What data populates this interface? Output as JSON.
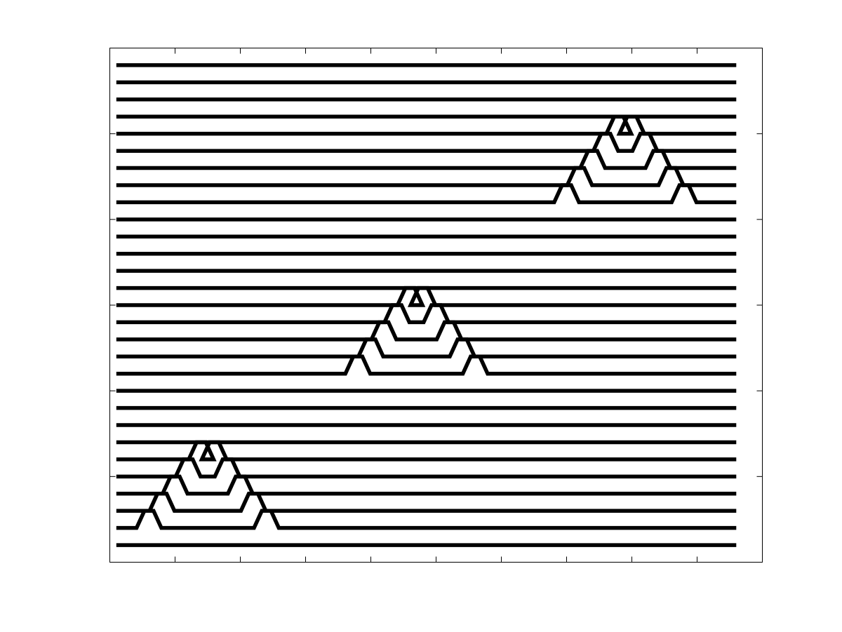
{
  "chart_data": {
    "type": "line",
    "title": "",
    "xlabel": "",
    "ylabel": "",
    "grid": false,
    "legend": "none",
    "ticks_labeled": false,
    "xlim": [
      0,
      10
    ],
    "ylim": [
      0,
      30
    ],
    "x_ticks": [
      1,
      2,
      3,
      4,
      5,
      6,
      7,
      8,
      9
    ],
    "y_ticks": [
      5,
      10,
      15,
      20,
      25
    ],
    "x_start": 0.1,
    "x_end": 9.6,
    "line_count": 29,
    "line_spacing": 1,
    "y_first": 1,
    "pulse_peak_height": 1,
    "pulse_width": 0.38,
    "colors": {
      "line": "#000000",
      "axes": "#000000",
      "background": "#ffffff"
    },
    "series": [
      {
        "y": 1,
        "pulses": []
      },
      {
        "y": 2,
        "pulses": [
          0.6,
          2.4
        ]
      },
      {
        "y": 3,
        "pulses": [
          0.8,
          2.2
        ]
      },
      {
        "y": 4,
        "pulses": [
          1.0,
          2.0
        ]
      },
      {
        "y": 5,
        "pulses": [
          1.2,
          1.8
        ]
      },
      {
        "y": 6,
        "pulses": [
          1.4,
          1.6
        ]
      },
      {
        "y": 7,
        "pulses": []
      },
      {
        "y": 8,
        "pulses": []
      },
      {
        "y": 9,
        "pulses": []
      },
      {
        "y": 10,
        "pulses": []
      },
      {
        "y": 11,
        "pulses": [
          3.8,
          5.6
        ]
      },
      {
        "y": 12,
        "pulses": [
          4.0,
          5.4
        ]
      },
      {
        "y": 13,
        "pulses": [
          4.2,
          5.2
        ]
      },
      {
        "y": 14,
        "pulses": [
          4.4,
          5.0
        ]
      },
      {
        "y": 15,
        "pulses": [
          4.6,
          4.8
        ]
      },
      {
        "y": 16,
        "pulses": []
      },
      {
        "y": 17,
        "pulses": []
      },
      {
        "y": 18,
        "pulses": []
      },
      {
        "y": 19,
        "pulses": []
      },
      {
        "y": 20,
        "pulses": []
      },
      {
        "y": 21,
        "pulses": [
          7.0,
          8.8
        ]
      },
      {
        "y": 22,
        "pulses": [
          7.2,
          8.6
        ]
      },
      {
        "y": 23,
        "pulses": [
          7.4,
          8.4
        ]
      },
      {
        "y": 24,
        "pulses": [
          7.6,
          8.2
        ]
      },
      {
        "y": 25,
        "pulses": [
          7.8,
          8.0
        ]
      },
      {
        "y": 26,
        "pulses": []
      },
      {
        "y": 27,
        "pulses": []
      },
      {
        "y": 28,
        "pulses": []
      },
      {
        "y": 29,
        "pulses": []
      }
    ]
  }
}
